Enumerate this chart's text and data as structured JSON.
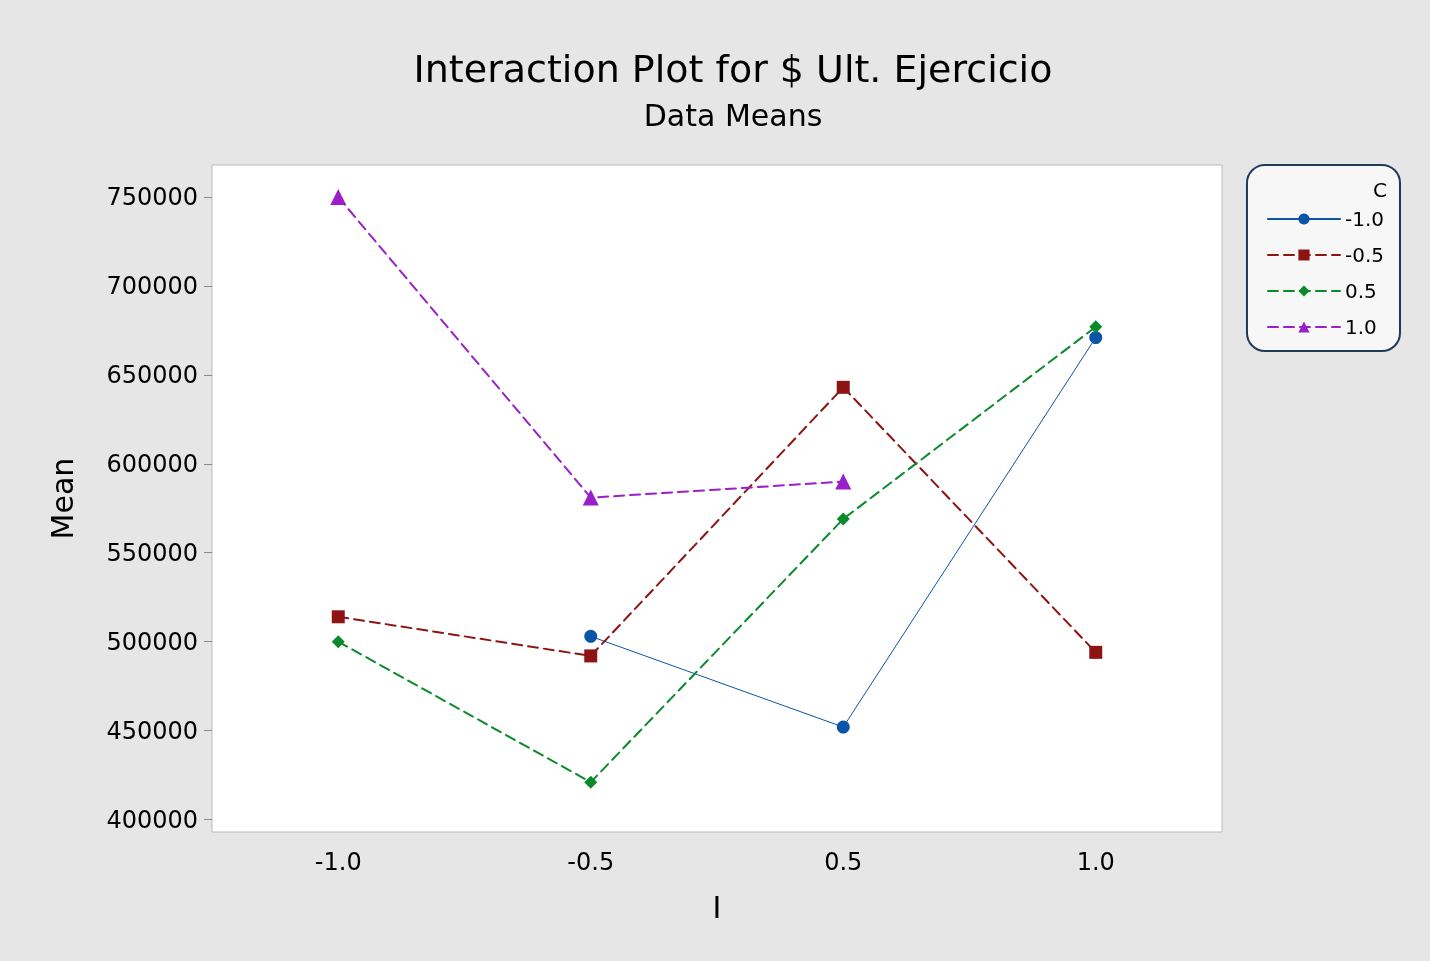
{
  "chart_data": {
    "type": "line",
    "title": "Interaction Plot for $ Ult. Ejercicio",
    "subtitle": "Data Means",
    "xlabel": "I",
    "ylabel": "Mean",
    "legend_title": "C",
    "categories": [
      "-1.0",
      "-0.5",
      "0.5",
      "1.0"
    ],
    "series": [
      {
        "name": "-1.0",
        "color": "#0a55a8",
        "values": [
          null,
          503000,
          452000,
          671000
        ],
        "marker": "circle",
        "line_style": "solid"
      },
      {
        "name": "-0.5",
        "color": "#8e1414",
        "values": [
          514000,
          492000,
          643000,
          494000
        ],
        "marker": "square",
        "line_style": "dashed"
      },
      {
        "name": "0.5",
        "color": "#0b8a2c",
        "values": [
          500000,
          421000,
          569000,
          677000
        ],
        "marker": "diamond",
        "line_style": "dashed"
      },
      {
        "name": "1.0",
        "color": "#9a1fc8",
        "values": [
          750000,
          581000,
          590000,
          null
        ],
        "marker": "triangle",
        "line_style": "dashed"
      }
    ],
    "ylim": [
      393000,
      768000
    ],
    "yticks": [
      400000,
      450000,
      500000,
      550000,
      600000,
      650000,
      700000,
      750000
    ],
    "grid": false,
    "legend": "right"
  }
}
